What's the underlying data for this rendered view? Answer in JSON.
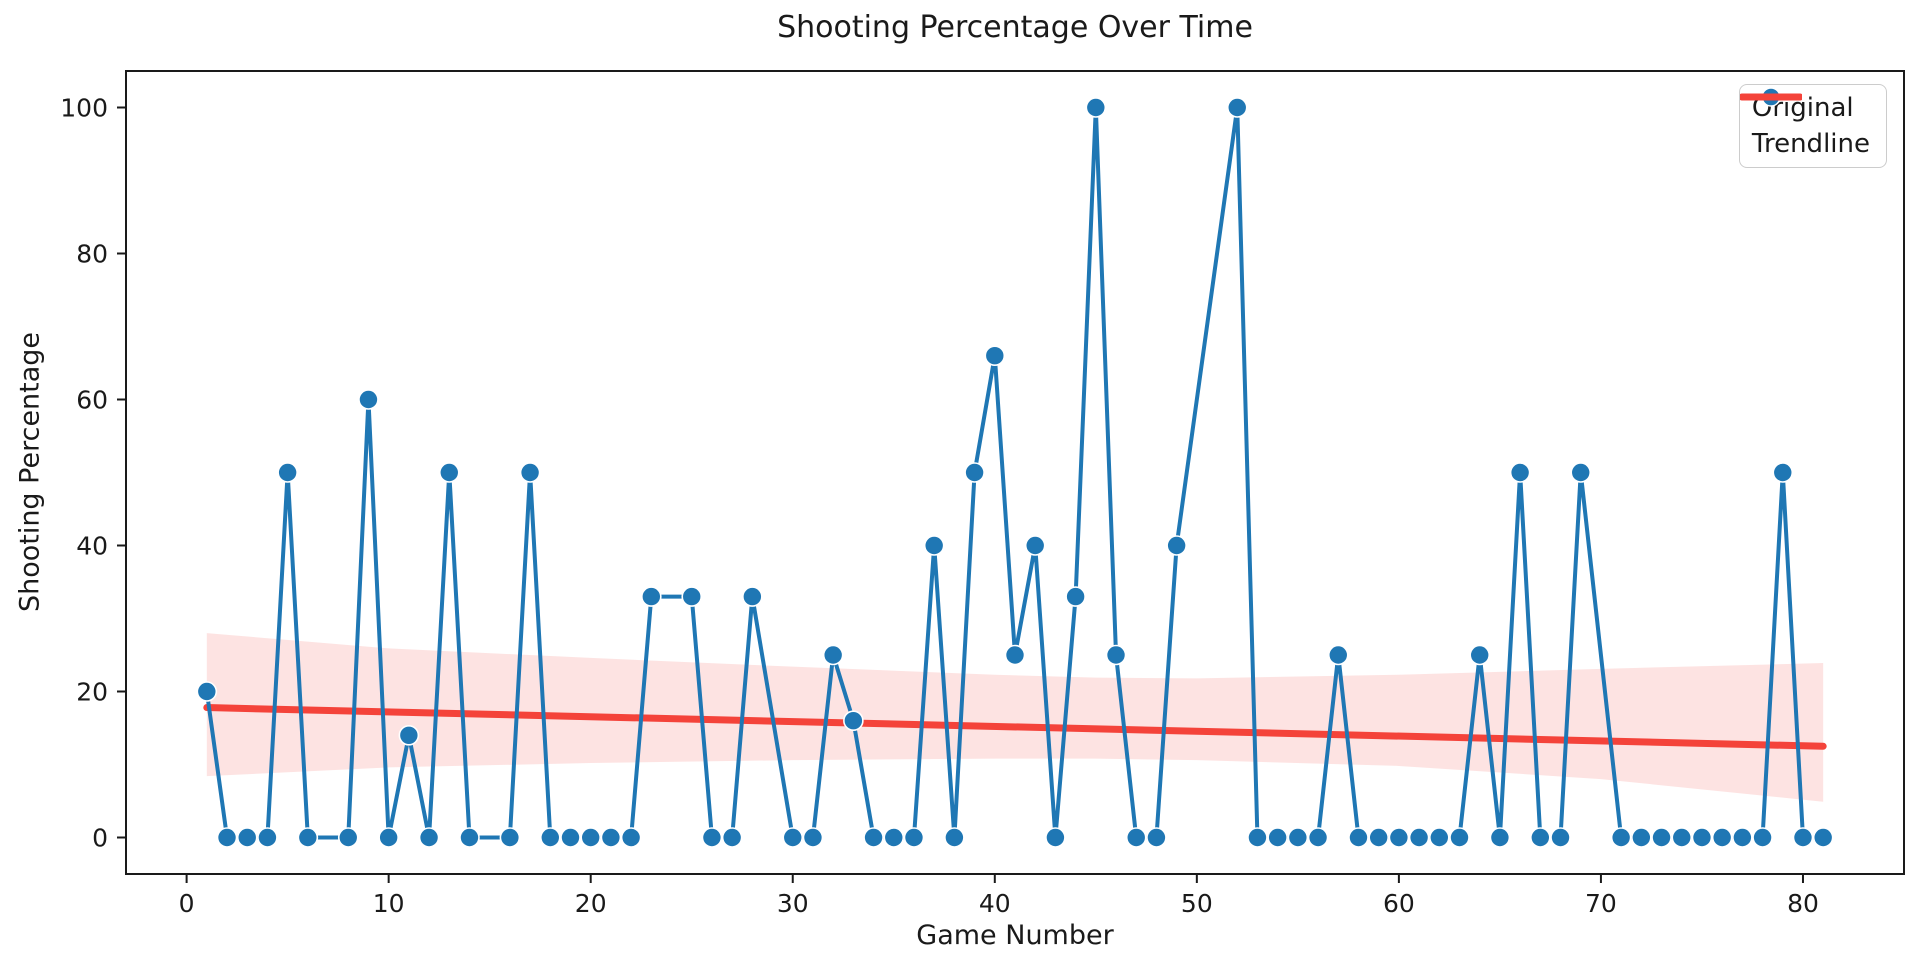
{
  "figure": {
    "background": "#ffffff"
  },
  "chart_data": {
    "type": "line",
    "title": "Shooting Percentage Over Time",
    "xlabel": "Game Number",
    "ylabel": "Shooting Percentage",
    "xlim": [
      -3,
      85
    ],
    "ylim": [
      -5,
      105
    ],
    "xticks": [
      0,
      10,
      20,
      30,
      40,
      50,
      60,
      70,
      80
    ],
    "yticks": [
      0,
      20,
      40,
      60,
      80,
      100
    ],
    "grid": false,
    "legend": {
      "position": "upper right",
      "entries": [
        {
          "label": "Original",
          "color": "#1f77b4",
          "marker": "circle-on-line"
        },
        {
          "label": "Trendline",
          "color": "#f4433a",
          "marker": "line"
        }
      ]
    },
    "series": [
      {
        "name": "Original",
        "color": "#1f77b4",
        "marker": "circle",
        "x": [
          1,
          2,
          3,
          4,
          5,
          6,
          8,
          9,
          10,
          11,
          12,
          13,
          14,
          16,
          17,
          18,
          19,
          20,
          21,
          22,
          23,
          25,
          26,
          27,
          28,
          30,
          31,
          32,
          33,
          34,
          35,
          36,
          37,
          38,
          39,
          40,
          41,
          42,
          43,
          44,
          45,
          46,
          47,
          48,
          49,
          52,
          53,
          54,
          55,
          56,
          57,
          58,
          59,
          60,
          61,
          62,
          63,
          64,
          65,
          66,
          67,
          68,
          69,
          71,
          72,
          73,
          74,
          75,
          76,
          77,
          78,
          79,
          80,
          81
        ],
        "y": [
          20,
          0,
          0,
          0,
          50,
          0,
          0,
          60,
          0,
          14,
          0,
          50,
          0,
          0,
          50,
          0,
          0,
          0,
          0,
          0,
          33,
          33,
          0,
          0,
          33,
          0,
          0,
          25,
          16,
          0,
          0,
          0,
          40,
          0,
          50,
          66,
          25,
          40,
          0,
          33,
          100,
          25,
          0,
          0,
          40,
          100,
          0,
          0,
          0,
          0,
          25,
          0,
          0,
          0,
          0,
          0,
          0,
          25,
          0,
          50,
          0,
          0,
          50,
          0,
          0,
          0,
          0,
          0,
          0,
          0,
          0,
          50,
          0,
          0
        ]
      },
      {
        "name": "Trendline",
        "color": "#f4433a",
        "marker": "none",
        "x": [
          1,
          81
        ],
        "y": [
          17.8,
          12.5
        ]
      }
    ],
    "confidence_band": {
      "color": "rgba(244,67,58,0.15)",
      "x": [
        1,
        10,
        20,
        30,
        40,
        45,
        50,
        60,
        70,
        81
      ],
      "top": [
        28.0,
        25.9,
        24.6,
        23.4,
        22.3,
        21.9,
        21.8,
        22.3,
        23.1,
        23.9
      ],
      "bottom": [
        8.4,
        9.6,
        10.2,
        10.6,
        10.8,
        10.8,
        10.6,
        9.8,
        8.0,
        4.9
      ]
    }
  }
}
